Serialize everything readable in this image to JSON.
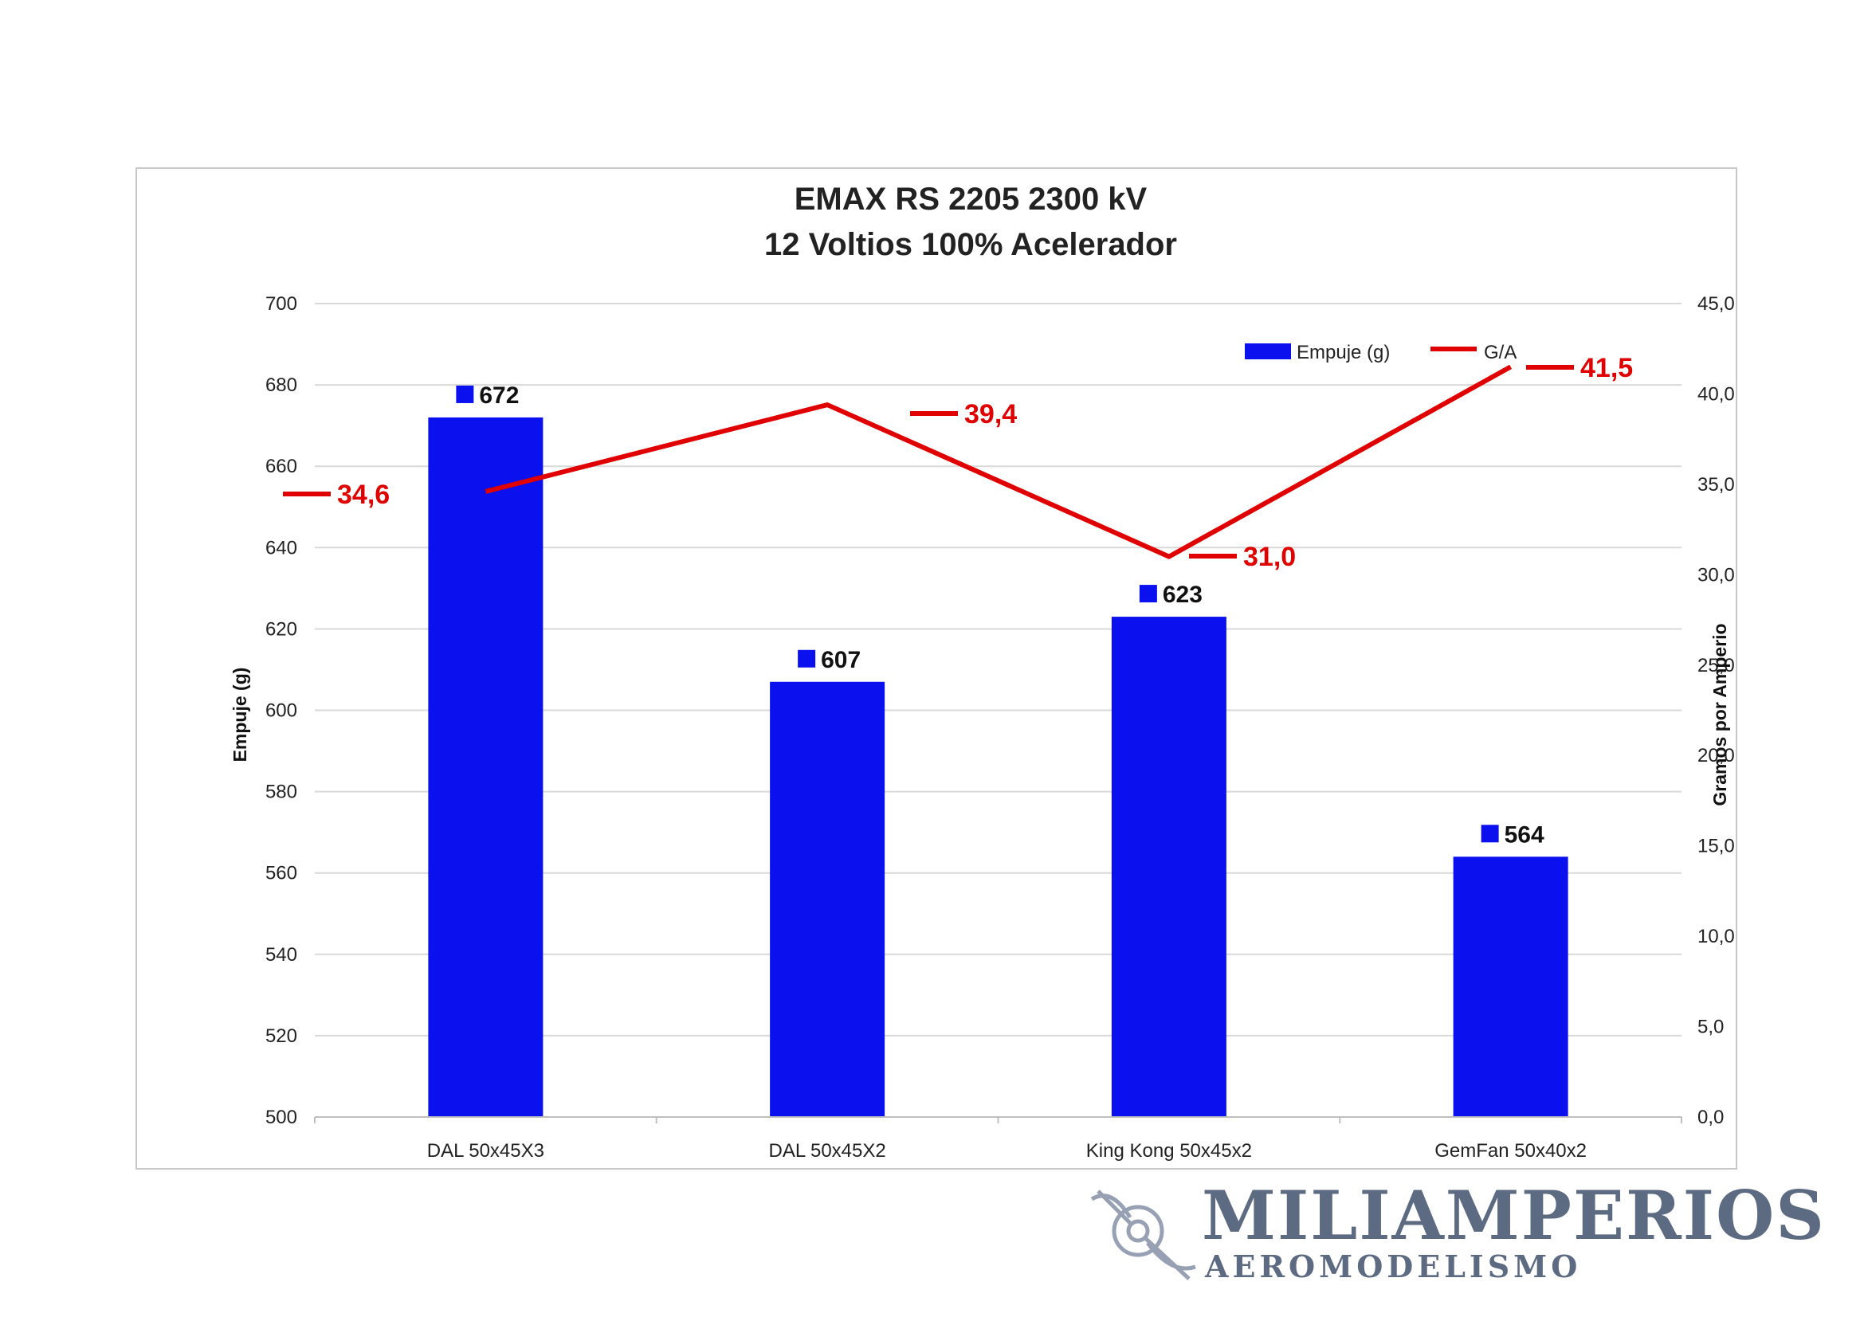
{
  "colors": {
    "bar": "#0a10ee",
    "line": "#e00000",
    "grid": "#d9d9d9",
    "axis": "#bfbfbf",
    "logo": "#4b5a75"
  },
  "logo": {
    "name": "MILIAMPERIOS",
    "subtitle": "AEROMODELISMO",
    "icon": "propeller-icon"
  },
  "chart_data": {
    "type": "bar",
    "title": "EMAX RS 2205 2300 kV",
    "subtitle": "12 Voltios 100% Acelerador",
    "categories": [
      "DAL 50x45X3",
      "DAL 50x45X2",
      "King Kong  50x45x2",
      "GemFan 50x40x2"
    ],
    "ylabel": "Empuje (g)",
    "y2label": "Gramos por Amperio",
    "ylim": [
      500,
      700
    ],
    "y2lim": [
      0,
      45
    ],
    "yticks": [
      "500",
      "520",
      "540",
      "560",
      "580",
      "600",
      "620",
      "640",
      "660",
      "680",
      "700"
    ],
    "y2ticks": [
      "0,0",
      "5,0",
      "10,0",
      "15,0",
      "20,0",
      "25,0",
      "30,0",
      "35,0",
      "40,0",
      "45,0"
    ],
    "grid": true,
    "legend_position": "top-right",
    "series": [
      {
        "name": "Empuje (g)",
        "type": "bar",
        "axis": "left",
        "values": [
          672,
          607,
          623,
          564
        ],
        "labels": [
          "672",
          "607",
          "623",
          "564"
        ]
      },
      {
        "name": "G/A",
        "type": "line",
        "axis": "right",
        "values": [
          34.6,
          39.4,
          31.0,
          41.5
        ],
        "labels": [
          "34,6",
          "39,4",
          "31,0",
          "41,5"
        ]
      }
    ]
  }
}
